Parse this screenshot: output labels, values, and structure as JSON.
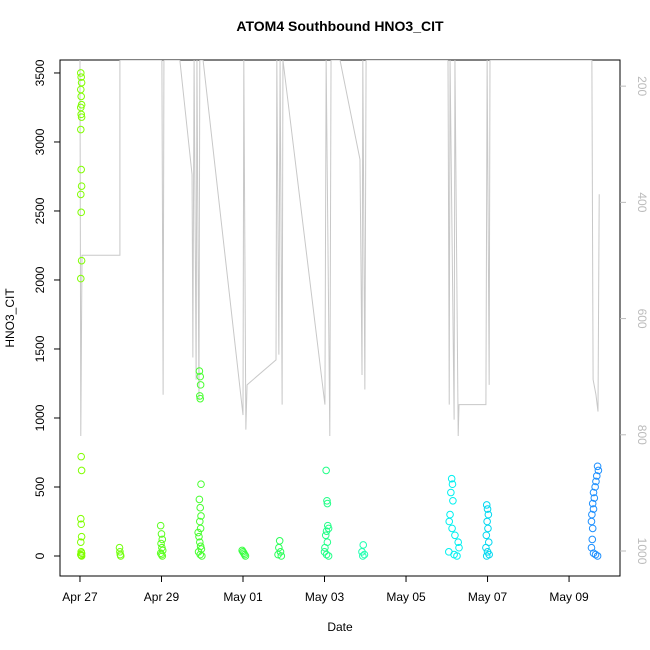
{
  "chart_data": {
    "type": "scatter",
    "title": "ATOM4 Southbound HNO3_CIT",
    "x_label": "Date",
    "y_label": "HNO3_CIT",
    "xlim": [
      -0.49,
      13.25
    ],
    "xticks": [
      {
        "value": 0,
        "label": "Apr 27"
      },
      {
        "value": 2,
        "label": "Apr 29"
      },
      {
        "value": 4,
        "label": "May 01"
      },
      {
        "value": 6,
        "label": "May 03"
      },
      {
        "value": 8,
        "label": "May 05"
      },
      {
        "value": 10,
        "label": "May 07"
      },
      {
        "value": 12,
        "label": "May 09"
      }
    ],
    "ylim": [
      -145,
      3594
    ],
    "yticks": [
      0,
      500,
      1000,
      1500,
      2000,
      2500,
      3000,
      3500
    ],
    "y2lim": [
      1043,
      155
    ],
    "y2ticks": [
      200,
      400,
      600,
      800,
      1000
    ],
    "y2color": "#bbbbbb",
    "series": [
      {
        "color": "#c8c8c8",
        "axis": "y2",
        "kind": "line",
        "x": [
          0,
          0.02,
          0.05,
          0.98,
          0.98,
          2.01,
          2.04,
          2.06,
          2.45,
          2.75,
          2.77,
          2.8,
          2.85,
          2.87,
          2.92,
          2.94,
          3.02,
          4.0,
          4.02,
          4.07,
          4.1,
          4.81,
          4.83,
          4.88,
          4.91,
          4.96,
          4.98,
          6.01,
          6.04,
          6.13,
          6.16,
          6.38,
          6.87,
          6.92,
          6.94,
          6.99,
          7.02,
          9.03,
          9.06,
          9.08,
          9.18,
          9.2,
          9.28,
          9.3,
          9.96,
          9.99,
          10.04,
          10.06,
          12.56,
          12.59,
          12.66,
          12.71,
          12.74
        ],
        "values": [
          155,
          802,
          491,
          491,
          155,
          155,
          731,
          155,
          155,
          352,
          667,
          155,
          705,
          155,
          740,
          155,
          155,
          766,
          155,
          791,
          714,
          671,
          155,
          662,
          155,
          748,
          155,
          748,
          155,
          802,
          155,
          155,
          326,
          697,
          155,
          722,
          155,
          155,
          748,
          155,
          774,
          155,
          802,
          748,
          748,
          155,
          714,
          155,
          155,
          705,
          731,
          760,
          386
        ]
      },
      {
        "color": "#80ff00",
        "x": [
          0.02,
          0.03,
          0.04,
          0.02,
          0.03,
          0.04,
          0.02,
          0.03,
          0.04,
          0.02,
          0.03,
          0.04,
          0.02,
          0.03,
          0.04,
          0.02,
          0.03,
          0.04,
          0.02,
          0.03,
          0.04,
          0.02,
          0.03,
          0.04,
          0.02,
          0.03,
          0.04
        ],
        "values": [
          3500,
          3470,
          3430,
          3380,
          3330,
          3270,
          3250,
          3200,
          3180,
          3090,
          2800,
          2680,
          2620,
          2490,
          2140,
          2010,
          720,
          620,
          270,
          230,
          140,
          100,
          30,
          20,
          10,
          5,
          0
        ]
      },
      {
        "color": "#72ff0e",
        "x": [
          0.97,
          0.98,
          0.99,
          1.0
        ],
        "values": [
          60,
          30,
          10,
          0
        ]
      },
      {
        "color": "#5cff20",
        "x": [
          1.98,
          2.0,
          2.02,
          1.99,
          2.01,
          2.03,
          1.98,
          2.0,
          2.02
        ],
        "values": [
          220,
          160,
          120,
          90,
          60,
          40,
          20,
          10,
          0
        ]
      },
      {
        "color": "#48ff30",
        "x": [
          2.93,
          2.95,
          2.96,
          2.94,
          2.95,
          2.97,
          2.93,
          2.95,
          2.97,
          2.94,
          2.96,
          2.9,
          2.92,
          2.94,
          2.96,
          2.98,
          2.91,
          2.95,
          2.99
        ],
        "values": [
          1340,
          1300,
          1240,
          1160,
          1140,
          520,
          410,
          350,
          290,
          250,
          200,
          170,
          140,
          100,
          70,
          50,
          30,
          10,
          0
        ]
      },
      {
        "color": "#38ff40",
        "x": [
          3.98,
          4.0,
          4.02,
          4.04,
          4.06
        ],
        "values": [
          40,
          30,
          20,
          10,
          0
        ]
      },
      {
        "color": "#2aff58",
        "x": [
          4.9,
          4.88,
          4.92,
          4.86,
          4.94
        ],
        "values": [
          110,
          60,
          30,
          10,
          0
        ]
      },
      {
        "color": "#22ff88",
        "x": [
          6.04,
          6.06,
          6.07,
          6.08,
          6.1,
          6.05,
          6.03,
          6.07,
          6.01,
          6.0,
          6.05,
          6.1
        ],
        "values": [
          620,
          400,
          380,
          220,
          200,
          180,
          150,
          100,
          60,
          30,
          10,
          0
        ]
      },
      {
        "color": "#20ffb0",
        "x": [
          6.95,
          6.92,
          6.98,
          6.94
        ],
        "values": [
          80,
          30,
          10,
          0
        ]
      },
      {
        "color": "#00f0f0",
        "x": [
          9.12,
          9.14,
          9.1,
          9.15,
          9.08,
          9.06,
          9.13,
          9.2,
          9.28,
          9.3,
          9.05,
          9.18,
          9.25
        ],
        "values": [
          560,
          520,
          460,
          400,
          300,
          250,
          200,
          150,
          100,
          60,
          30,
          10,
          0
        ]
      },
      {
        "color": "#00d8f0",
        "x": [
          9.98,
          10.0,
          10.02,
          9.99,
          10.01,
          9.97,
          10.03,
          9.96,
          10.0,
          10.04,
          9.98
        ],
        "values": [
          370,
          340,
          300,
          250,
          200,
          150,
          100,
          60,
          30,
          10,
          0
        ]
      },
      {
        "color": "#1e90ff",
        "x": [
          12.7,
          12.72,
          12.68,
          12.66,
          12.64,
          12.6,
          12.62,
          12.58,
          12.6,
          12.56,
          12.55,
          12.58,
          12.57,
          12.55,
          12.6,
          12.65,
          12.7
        ],
        "values": [
          650,
          620,
          580,
          540,
          500,
          460,
          420,
          380,
          340,
          300,
          250,
          200,
          120,
          60,
          20,
          10,
          0
        ]
      }
    ]
  }
}
